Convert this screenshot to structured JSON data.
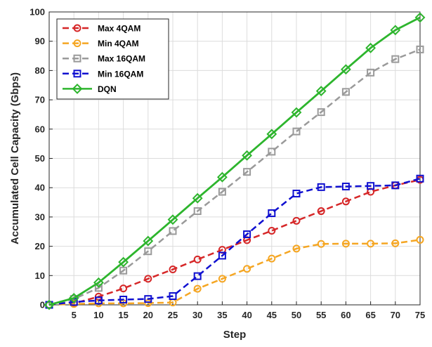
{
  "chart_data": {
    "type": "line",
    "title": "",
    "xlabel": "Step",
    "ylabel": "Accumulated Cell Capacity (Gbps)",
    "xlim": [
      0,
      75
    ],
    "ylim": [
      0,
      100
    ],
    "grid": true,
    "legend_position": "top-left",
    "x": [
      0,
      5,
      10,
      15,
      20,
      25,
      30,
      35,
      40,
      45,
      50,
      55,
      60,
      65,
      70,
      75
    ],
    "x_tick_labels": [
      "5",
      "10",
      "15",
      "20",
      "25",
      "30",
      "35",
      "40",
      "45",
      "50",
      "55",
      "60",
      "65",
      "70",
      "75"
    ],
    "y_ticks": [
      0,
      10,
      20,
      30,
      40,
      50,
      60,
      70,
      80,
      90,
      100
    ],
    "series": [
      {
        "name": "Max 4QAM",
        "color": "#d62728",
        "dash": true,
        "marker": "circle",
        "values": [
          0,
          0.5,
          2.8,
          5.6,
          8.9,
          12.1,
          15.5,
          18.8,
          22.1,
          25.3,
          28.7,
          32.0,
          35.3,
          38.6,
          40.8,
          42.7
        ]
      },
      {
        "name": "Min 4QAM",
        "color": "#f5a623",
        "dash": true,
        "marker": "circle",
        "values": [
          0,
          0.3,
          0.5,
          0.5,
          0.6,
          0.8,
          5.5,
          8.9,
          12.3,
          15.8,
          19.2,
          20.8,
          20.9,
          20.9,
          21.0,
          22.2
        ]
      },
      {
        "name": "Max 16QAM",
        "color": "#9a9a9a",
        "dash": true,
        "marker": "square",
        "values": [
          0,
          2.0,
          5.8,
          11.7,
          18.3,
          25.2,
          32.0,
          38.6,
          45.4,
          52.3,
          59.2,
          65.8,
          72.7,
          79.3,
          83.9,
          87.2
        ]
      },
      {
        "name": "Min 16QAM",
        "color": "#1010d0",
        "dash": true,
        "marker": "square",
        "values": [
          0,
          1.0,
          1.5,
          1.8,
          2.0,
          3.0,
          9.8,
          16.8,
          24.1,
          31.3,
          38.0,
          40.2,
          40.4,
          40.6,
          40.8,
          43.1
        ]
      },
      {
        "name": "DQN",
        "color": "#2db52d",
        "dash": false,
        "marker": "diamond",
        "values": [
          0,
          2.3,
          7.6,
          14.6,
          21.8,
          29.1,
          36.4,
          43.6,
          51.0,
          58.3,
          65.7,
          73.0,
          80.4,
          87.7,
          93.8,
          98.1
        ]
      }
    ]
  }
}
